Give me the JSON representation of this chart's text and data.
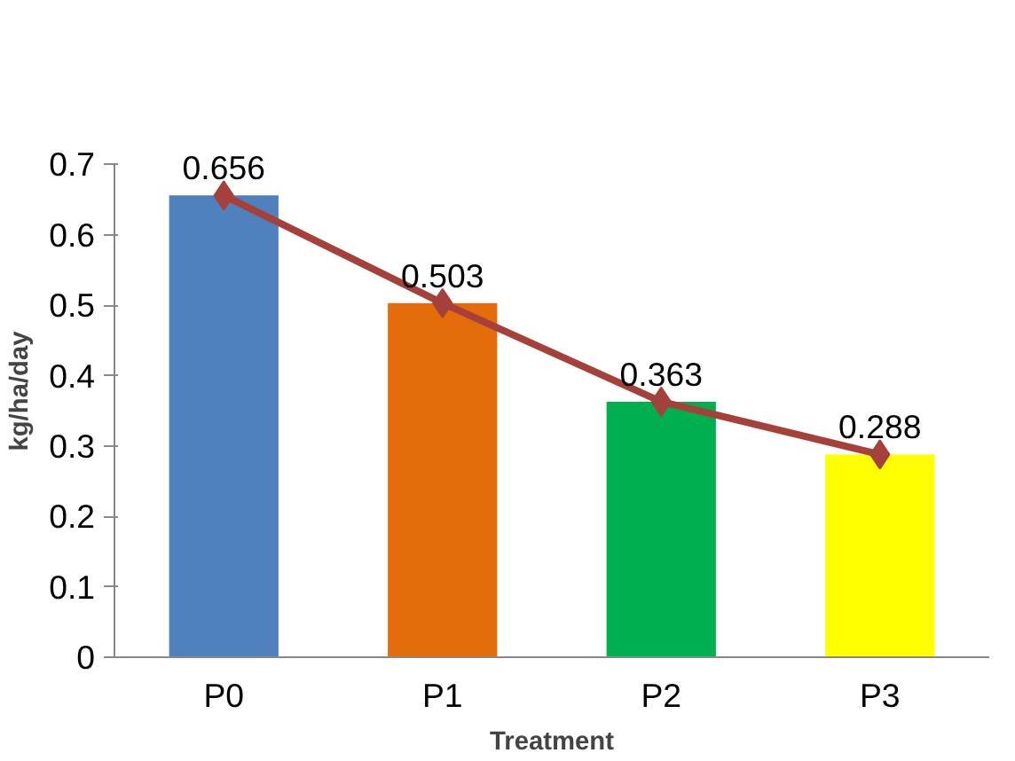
{
  "chart_data": {
    "type": "bar",
    "categories": [
      "P0",
      "P1",
      "P2",
      "P3"
    ],
    "xlabel": "Treatment",
    "ylabel": "kg/ha/day",
    "ylim": [
      0,
      0.7
    ],
    "yticks": [
      0,
      0.1,
      0.2,
      0.3,
      0.4,
      0.5,
      0.6,
      0.7
    ],
    "series": [
      {
        "colors": [
          "#4f81bd",
          "#e46c0a",
          "#00b050",
          "#ffff00"
        ],
        "values": [
          0.656,
          0.503,
          0.363,
          0.288
        ]
      },
      {
        "type": "line",
        "color": "#a5403b",
        "marker": "diamond",
        "values": [
          0.656,
          0.503,
          0.363,
          0.288
        ],
        "value_labels": [
          "0.656",
          "0.503",
          "0.363",
          "0.288"
        ]
      }
    ],
    "grid": false
  }
}
